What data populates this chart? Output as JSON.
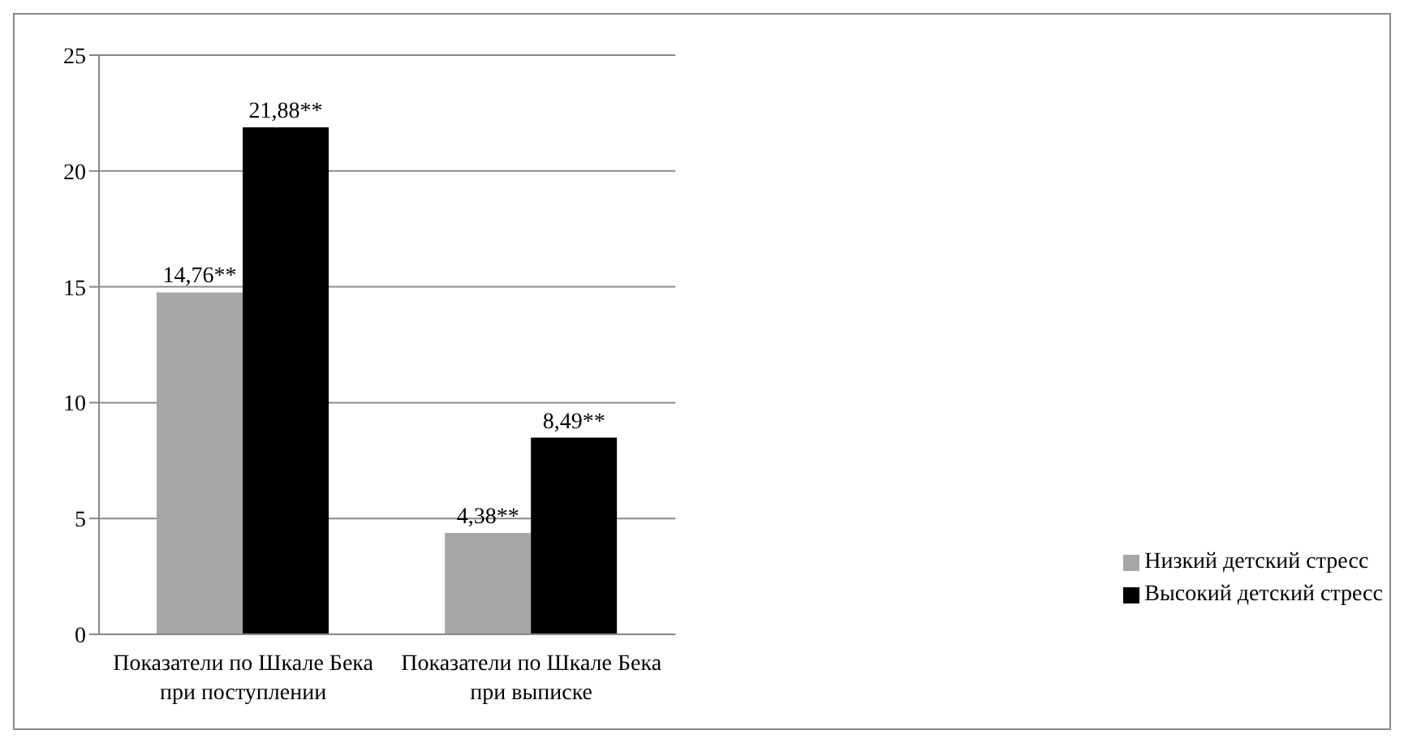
{
  "chart_data": {
    "type": "bar",
    "categories": [
      "Показатели по Шкале Бека при поступлении",
      "Показатели по Шкале Бека при выписке"
    ],
    "series": [
      {
        "name": "Низкий детский стресс",
        "color": "#a6a6a6",
        "values": [
          14.76,
          4.38
        ],
        "value_labels": [
          "14,76**",
          "4,38**"
        ]
      },
      {
        "name": "Высокий детский стресс",
        "color": "#000000",
        "values": [
          21.88,
          8.49
        ],
        "value_labels": [
          "21,88**",
          "8,49**"
        ]
      }
    ],
    "ylim": [
      0,
      25
    ],
    "yticks": [
      0,
      5,
      10,
      15,
      20,
      25
    ],
    "grid": "y",
    "legend": "right"
  }
}
